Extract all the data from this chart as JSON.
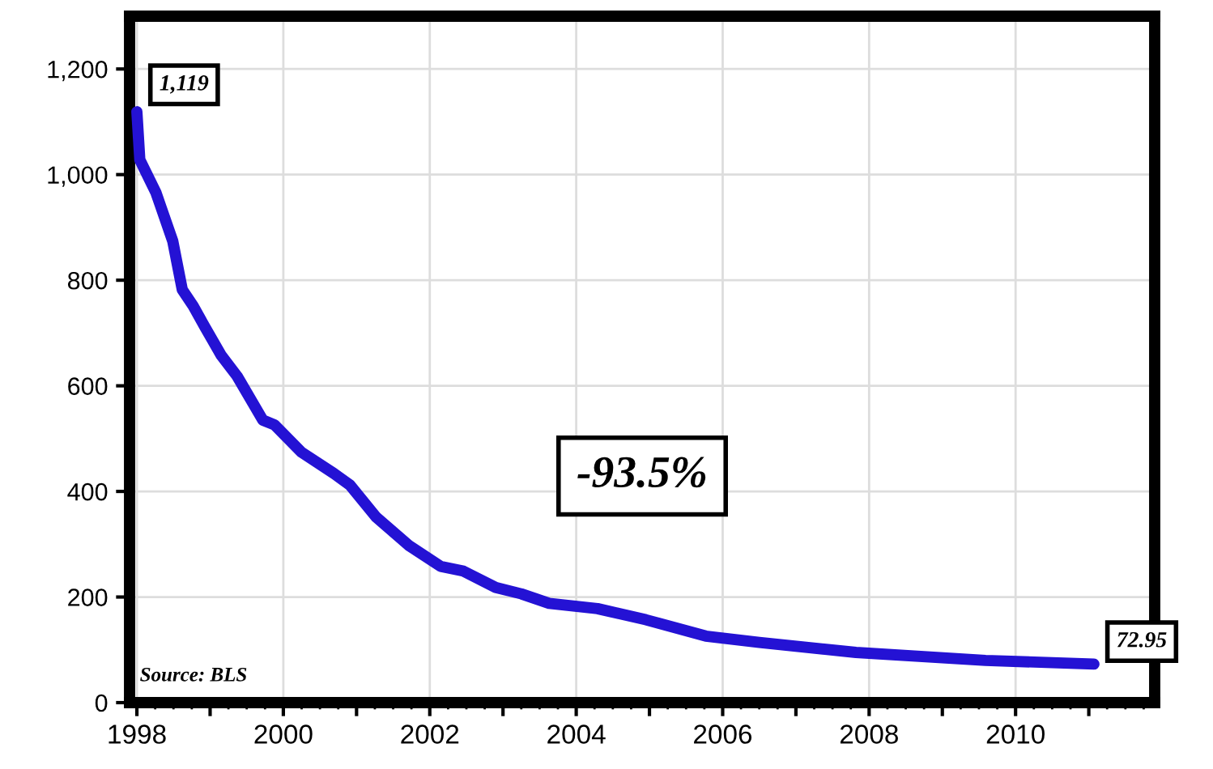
{
  "chart_data": {
    "type": "line",
    "x": [
      1998.0,
      1998.04,
      1998.26,
      1998.49,
      1998.62,
      1998.77,
      1998.93,
      1999.15,
      1999.37,
      1999.72,
      1999.88,
      2000.25,
      2000.69,
      2000.91,
      2001.27,
      2001.71,
      2002.15,
      2002.46,
      2002.9,
      2003.25,
      2003.63,
      2004.29,
      2004.95,
      2005.77,
      2006.5,
      2007.82,
      2009.59,
      2011.07
    ],
    "series": [
      {
        "color": "#2412d4",
        "values": [
          1119,
          1028,
          966,
          874,
          782,
          751,
          711,
          658,
          618,
          535,
          526,
          474,
          434,
          412,
          351,
          298,
          258,
          249,
          218,
          206,
          188,
          178,
          157,
          126,
          114,
          95,
          80,
          72.95
        ]
      }
    ],
    "xlim": [
      1997.9,
      2011.9
    ],
    "xticks": [
      1998,
      {
        "value": 1999,
        "label": null
      },
      2000,
      {
        "value": 2001,
        "label": null
      },
      2002,
      {
        "value": 2003,
        "label": null
      },
      2004,
      {
        "value": 2005,
        "label": null
      },
      2006,
      {
        "value": 2007,
        "label": null
      },
      2008,
      {
        "value": 2009,
        "label": null
      },
      2010,
      {
        "value": 2011,
        "label": null
      }
    ],
    "ylim": [
      0,
      1300
    ],
    "yticks": [
      0,
      200,
      400,
      600,
      800,
      {
        "value": 1000,
        "label": "1,000"
      },
      {
        "value": 1200,
        "label": "1,200"
      }
    ],
    "grid": true,
    "marker": "none",
    "line_style": "solid",
    "annotations": [
      {
        "text": "1,119",
        "x": 1998.0,
        "y": 1119
      },
      {
        "text": "72.95",
        "x": 2011.07,
        "y": 72.95
      },
      "-93.5%",
      "Source: BLS"
    ]
  }
}
